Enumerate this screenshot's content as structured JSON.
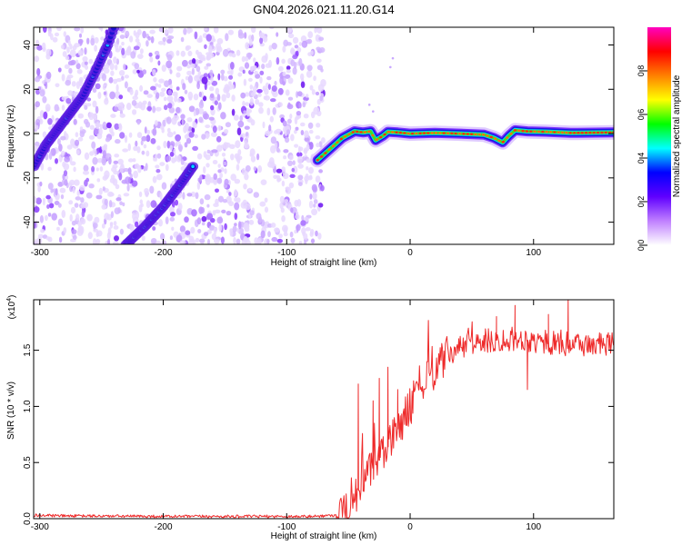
{
  "title": "GN04.2026.021.11.20.G14",
  "chart_data": [
    {
      "type": "heatmap",
      "title": "GN04.2026.021.11.20.G14",
      "xlabel": "Height of straight line (km)",
      "ylabel": "Frequency (Hz)",
      "xlim": [
        -305,
        165
      ],
      "ylim": [
        -50,
        48
      ],
      "xticks": [
        -300,
        -200,
        -100,
        0,
        100
      ],
      "yticks": [
        -40,
        -20,
        0,
        20,
        40
      ],
      "colorbar": {
        "label": "Normalized spectral amplitude",
        "range": [
          0,
          1
        ],
        "ticks": [
          0.0,
          0.2,
          0.4,
          0.6,
          0.8
        ],
        "colors": [
          "#ffffff",
          "#c080ff",
          "#6000ff",
          "#0000ff",
          "#00ffff",
          "#00ff00",
          "#ffff00",
          "#ff8000",
          "#ff0000",
          "#ff00c0"
        ]
      },
      "noise_region_x": [
        -305,
        -70
      ],
      "features": [
        {
          "name": "diagonal-streak-upper",
          "x": [
            -305,
            -295,
            -280,
            -265,
            -255,
            -245,
            -240
          ],
          "y": [
            -15,
            -5,
            6,
            17,
            28,
            40,
            48
          ]
        },
        {
          "name": "diagonal-streak-lower",
          "x": [
            -230,
            -215,
            -200,
            -185,
            -175
          ],
          "y": [
            -50,
            -42,
            -33,
            -22,
            -14
          ]
        },
        {
          "name": "signal-track",
          "x": [
            -75,
            -65,
            -55,
            -45,
            -38,
            -32,
            -28,
            -22,
            -18,
            -10,
            0,
            20,
            40,
            60,
            68,
            75,
            80,
            85,
            95,
            110,
            130,
            165
          ],
          "y": [
            -12,
            -7,
            -2,
            1,
            0.5,
            1,
            -3,
            -1,
            0.8,
            0.5,
            0,
            0.3,
            0,
            -0.5,
            -2,
            -4,
            -1,
            1.5,
            1,
            0.8,
            0.3,
            0.5
          ]
        }
      ]
    },
    {
      "type": "line",
      "xlabel": "Height of straight line (km)",
      "ylabel": "SNR (10 * v/v)",
      "y_multiplier": "(x10",
      "y_multiplier_exp": "4",
      "xlim": [
        -305,
        165
      ],
      "ylim": [
        0,
        1.95
      ],
      "xticks": [
        -300,
        -200,
        -100,
        0,
        100
      ],
      "yticks": [
        0.0,
        0.5,
        1.0,
        1.5
      ],
      "color": "#ee2a2a",
      "envelope": {
        "x": [
          -305,
          -280,
          -200,
          -120,
          -80,
          -60,
          -50,
          -45,
          -40,
          -35,
          -30,
          -25,
          -20,
          -15,
          -10,
          -5,
          0,
          10,
          20,
          30,
          40,
          50,
          60,
          70,
          80,
          90,
          100,
          110,
          120,
          130,
          140,
          150,
          165
        ],
        "y": [
          0.03,
          0.025,
          0.02,
          0.02,
          0.02,
          0.03,
          0.1,
          0.2,
          0.3,
          0.38,
          0.45,
          0.52,
          0.6,
          0.7,
          0.8,
          0.9,
          1.0,
          1.18,
          1.33,
          1.45,
          1.52,
          1.56,
          1.58,
          1.59,
          1.6,
          1.6,
          1.58,
          1.57,
          1.56,
          1.56,
          1.55,
          1.55,
          1.55
        ]
      },
      "spikes": [
        {
          "x": -42,
          "y": 1.2
        },
        {
          "x": -30,
          "y": 1.05
        },
        {
          "x": -25,
          "y": 1.25
        },
        {
          "x": -18,
          "y": 1.35
        },
        {
          "x": -10,
          "y": 1.15
        },
        {
          "x": 70,
          "y": 1.8
        },
        {
          "x": 85,
          "y": 1.9
        },
        {
          "x": 95,
          "y": 1.15
        },
        {
          "x": 112,
          "y": 1.82
        },
        {
          "x": 128,
          "y": 1.95
        }
      ]
    }
  ]
}
